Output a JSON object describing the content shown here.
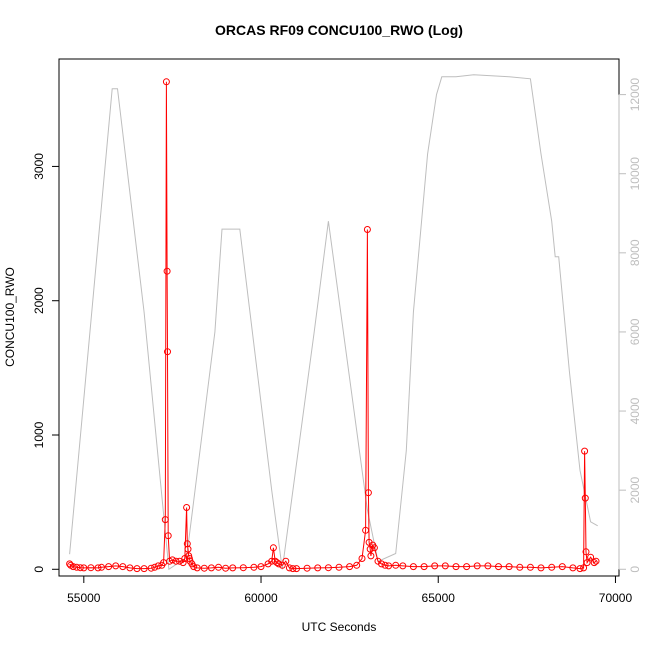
{
  "chart_data": {
    "type": "line",
    "title": "ORCAS RF09 CONCU100_RWO (Log)",
    "xlabel": "UTC Seconds",
    "ylabel": "CONCU100_RWO",
    "ylabel_right": "",
    "xlim": [
      54300,
      70100
    ],
    "ylim": [
      -50,
      3800
    ],
    "ylim_right": [
      -170,
      12900
    ],
    "x_ticks": [
      55000,
      60000,
      65000,
      70000
    ],
    "y_ticks": [
      0,
      1000,
      2000,
      3000
    ],
    "y_ticks_right": [
      0,
      2000,
      4000,
      6000,
      8000,
      10000,
      12000
    ],
    "grid": false,
    "colors": {
      "primary": "#ff0000",
      "secondary": "#bebebe"
    },
    "series": [
      {
        "axis": "left",
        "style": "line+points",
        "color": "#ff0000",
        "x": [
          54600,
          54630,
          54700,
          54800,
          54900,
          55000,
          55200,
          55400,
          55500,
          55700,
          55900,
          56100,
          56300,
          56500,
          56700,
          56900,
          57000,
          57100,
          57200,
          57250,
          57300,
          57330,
          57350,
          57360,
          57380,
          57420,
          57500,
          57600,
          57700,
          57800,
          57850,
          57900,
          57920,
          57940,
          57960,
          57980,
          58000,
          58050,
          58100,
          58200,
          58400,
          58600,
          58800,
          59000,
          59200,
          59500,
          59800,
          60000,
          60200,
          60300,
          60350,
          60400,
          60450,
          60500,
          60600,
          60700,
          60800,
          60900,
          61000,
          61300,
          61600,
          61900,
          62200,
          62500,
          62700,
          62850,
          62950,
          63000,
          63030,
          63050,
          63080,
          63100,
          63150,
          63200,
          63300,
          63400,
          63500,
          63600,
          63800,
          64000,
          64300,
          64600,
          64900,
          65200,
          65500,
          65800,
          66100,
          66400,
          66700,
          67000,
          67300,
          67600,
          67900,
          68200,
          68500,
          68800,
          69000,
          69100,
          69130,
          69150,
          69170,
          69200,
          69300,
          69400,
          69450
        ],
        "y": [
          40,
          30,
          20,
          15,
          12,
          10,
          12,
          10,
          15,
          20,
          25,
          20,
          10,
          5,
          5,
          8,
          15,
          25,
          30,
          50,
          370,
          3630,
          2220,
          1620,
          250,
          60,
          70,
          60,
          60,
          50,
          80,
          460,
          190,
          150,
          100,
          80,
          60,
          40,
          20,
          10,
          8,
          10,
          15,
          8,
          10,
          12,
          15,
          20,
          40,
          60,
          160,
          60,
          50,
          40,
          30,
          60,
          10,
          5,
          5,
          8,
          10,
          12,
          15,
          20,
          30,
          80,
          290,
          2530,
          570,
          200,
          150,
          100,
          180,
          160,
          60,
          40,
          30,
          25,
          30,
          25,
          20,
          20,
          25,
          25,
          20,
          20,
          25,
          25,
          20,
          20,
          15,
          15,
          10,
          15,
          20,
          10,
          5,
          10,
          880,
          530,
          130,
          50,
          90,
          50,
          60
        ]
      },
      {
        "axis": "right",
        "style": "line",
        "color": "#bebebe",
        "x": [
          54600,
          55800,
          55950,
          56700,
          57400,
          57900,
          58700,
          58900,
          59400,
          60300,
          60600,
          61500,
          61900,
          63000,
          63300,
          63800,
          64100,
          64300,
          64700,
          64950,
          65100,
          65500,
          66000,
          67000,
          67600,
          67900,
          68200,
          68300,
          68400,
          68700,
          69000,
          69300,
          69500
        ],
        "y": [
          380,
          12150,
          12150,
          6500,
          0,
          300,
          6000,
          8600,
          8600,
          2000,
          0,
          6000,
          8800,
          1500,
          200,
          400,
          3000,
          6500,
          10500,
          12000,
          12450,
          12450,
          12500,
          12450,
          12400,
          10500,
          8800,
          7900,
          7900,
          5000,
          2500,
          1200,
          1100
        ]
      }
    ]
  }
}
